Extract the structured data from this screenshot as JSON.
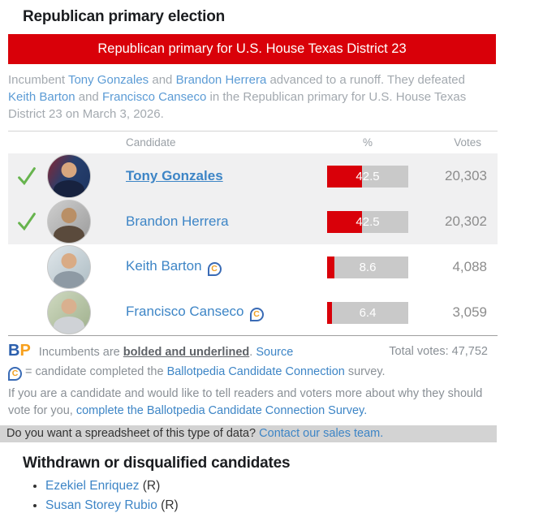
{
  "page_title": "Republican primary election",
  "banner": {
    "label": "Republican primary for U.S. House Texas District 23"
  },
  "intro": {
    "seg1": "Incumbent ",
    "link1": "Tony Gonzales",
    "seg2": " and ",
    "link2": "Brandon Herrera",
    "seg3": " advanced to a runoff. They defeated ",
    "link3": "Keith Barton",
    "seg4": " and ",
    "link4": "Francisco Canseco",
    "seg5": " in the Republican primary for U.S. House Texas District 23 on March 3, 2026."
  },
  "table": {
    "headers": {
      "candidate": "Candidate",
      "percent": "%",
      "votes": "Votes"
    },
    "rows": [
      {
        "name": "Tony Gonzales",
        "incumbent": true,
        "advanced": true,
        "survey": false,
        "pct": 42.5,
        "pct_label": "42.5",
        "votes": "20,303"
      },
      {
        "name": "Brandon Herrera",
        "incumbent": false,
        "advanced": true,
        "survey": false,
        "pct": 42.5,
        "pct_label": "42.5",
        "votes": "20,302"
      },
      {
        "name": "Keith Barton",
        "incumbent": false,
        "advanced": false,
        "survey": true,
        "pct": 8.6,
        "pct_label": "8.6",
        "votes": "4,088"
      },
      {
        "name": "Francisco Canseco",
        "incumbent": false,
        "advanced": false,
        "survey": true,
        "pct": 6.4,
        "pct_label": "6.4",
        "votes": "3,059"
      }
    ]
  },
  "footer": {
    "bp_logo": {
      "b": "B",
      "p": "P"
    },
    "legend": {
      "pre": "Incumbents are ",
      "emph": "bolded and underlined",
      "post": ". ",
      "source_link": "Source"
    },
    "total_votes": "Total votes: 47,752",
    "badge_line": {
      "pre": " = candidate completed the ",
      "link": "Ballotpedia Candidate Connection",
      "post": " survey."
    },
    "survey_line": {
      "pre": "If you are a candidate and would like to tell readers and voters more about why they should vote for you, ",
      "link": "complete the Ballotpedia Candidate Connection Survey."
    },
    "sales_strip": {
      "pre": "Do you want a spreadsheet of this type of data? ",
      "link": "Contact our sales team."
    }
  },
  "withdrawn": {
    "heading": "Withdrawn or disqualified candidates",
    "items": [
      {
        "name": "Ezekiel Enriquez",
        "party": "(R)"
      },
      {
        "name": "Susan Storey Rubio",
        "party": "(R)"
      }
    ]
  },
  "icons": {
    "winner_check_glyph": "✓",
    "survey_badge_glyph": "C"
  },
  "colors": {
    "accent_red": "#d90009",
    "link_blue": "#3d85c6",
    "intro_link_blue": "#5b9bd5",
    "check_green": "#67b44e",
    "bar_bg": "#c9c9c9",
    "row_highlight": "#f0f0f1",
    "strip_bg": "#d3d3d3",
    "bp_blue": "#2b5fad",
    "bp_gold": "#f7a01d"
  }
}
